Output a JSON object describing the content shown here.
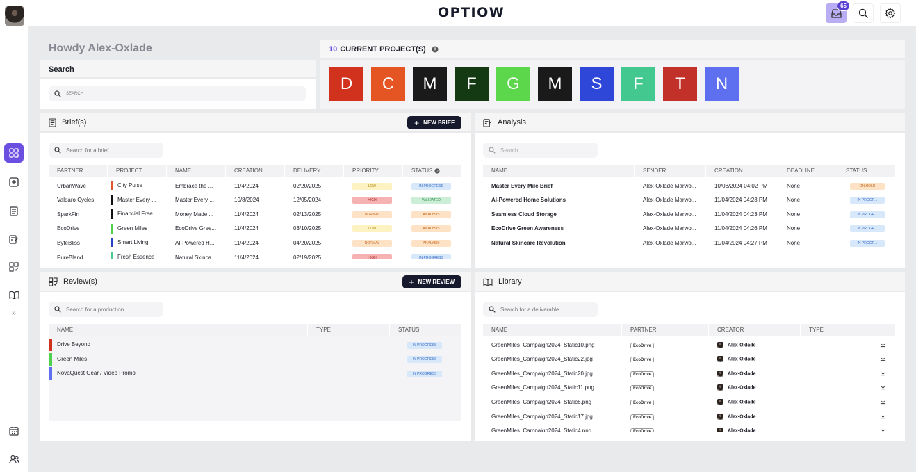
{
  "app": {
    "logo": "OPTIOW",
    "inbox_count": "65"
  },
  "welcome": {
    "greeting": "Howdy Alex-Oxlade",
    "search_title": "Search",
    "search_placeholder": "SEARCH"
  },
  "projects": {
    "count": "10",
    "label": "CURRENT PROJECT(S)",
    "tiles": [
      {
        "letter": "D",
        "color": "#d1321e"
      },
      {
        "letter": "C",
        "color": "#e55423"
      },
      {
        "letter": "M",
        "color": "#1a1a1a"
      },
      {
        "letter": "F",
        "color": "#133a12"
      },
      {
        "letter": "G",
        "color": "#5cd64a"
      },
      {
        "letter": "M",
        "color": "#1a1a1a"
      },
      {
        "letter": "S",
        "color": "#2e47d9"
      },
      {
        "letter": "F",
        "color": "#43c98f"
      },
      {
        "letter": "T",
        "color": "#c2302a"
      },
      {
        "letter": "N",
        "color": "#5e6ff0"
      }
    ]
  },
  "briefs": {
    "title": "Brief(s)",
    "new_button": "NEW BRIEF",
    "search_placeholder": "Search for a brief",
    "columns": [
      "PARTNER",
      "PROJECT",
      "NAME",
      "CREATION",
      "DELIVERY",
      "PRIORITY",
      "STATUS"
    ],
    "rows": [
      {
        "partner": "UrbanWave",
        "project": "City Pulse",
        "color": "#e0532c",
        "name": "Embrace the ...",
        "creation": "11/4/2024",
        "delivery": "02/20/2025",
        "priority": "LOW",
        "status": "IN PROGRESS"
      },
      {
        "partner": "Valdaro Cycles",
        "project": "Master Every ...",
        "color": "#111111",
        "name": "Master Every ...",
        "creation": "10/8/2024",
        "delivery": "12/05/2024",
        "priority": "HIGH",
        "status": "VALIDATED"
      },
      {
        "partner": "SparkFin",
        "project": "Financial Free...",
        "color": "#111111",
        "name": "Money Made ...",
        "creation": "11/4/2024",
        "delivery": "02/13/2025",
        "priority": "NORMAL",
        "status": "ANALYSIS"
      },
      {
        "partner": "EcoDrive",
        "project": "Green Miles",
        "color": "#4fd150",
        "name": "EcoDrive Gree...",
        "creation": "11/4/2024",
        "delivery": "03/10/2025",
        "priority": "LOW",
        "status": "ANALYSIS"
      },
      {
        "partner": "ByteBliss",
        "project": "Smart Living",
        "color": "#2a3fc8",
        "name": "AI-Powered H...",
        "creation": "11/4/2024",
        "delivery": "04/20/2025",
        "priority": "NORMAL",
        "status": "ANALYSIS"
      },
      {
        "partner": "PureBlend",
        "project": "Fresh Essence",
        "color": "#4bc98f",
        "name": "Natural Skinca...",
        "creation": "11/4/2024",
        "delivery": "02/19/2025",
        "priority": "HIGH",
        "status": "IN PROGRESS"
      }
    ]
  },
  "analysis": {
    "title": "Analysis",
    "search_placeholder": "Search",
    "columns": [
      "NAME",
      "SENDER",
      "CREATION",
      "DEADLINE",
      "STATUS"
    ],
    "rows": [
      {
        "name": "Master Every Mile Brief",
        "sender": "Alex-Oxlade Marwo...",
        "creation": "10/08/2024 04:02 PM",
        "deadline": "None",
        "status": "ON HOLD"
      },
      {
        "name": "AI-Powered Home Solutions",
        "sender": "Alex-Oxlade Marwo...",
        "creation": "11/04/2024 04:23 PM",
        "deadline": "None",
        "status": "IN PROGR..."
      },
      {
        "name": "Seamless Cloud Storage",
        "sender": "Alex-Oxlade Marwo...",
        "creation": "11/04/2024 04:23 PM",
        "deadline": "None",
        "status": "IN PROGR..."
      },
      {
        "name": "EcoDrive Green Awareness",
        "sender": "Alex-Oxlade Marwo...",
        "creation": "11/04/2024 04:26 PM",
        "deadline": "None",
        "status": "IN PROGR..."
      },
      {
        "name": "Natural Skincare Revolution",
        "sender": "Alex-Oxlade Marwo...",
        "creation": "11/04/2024 04:27 PM",
        "deadline": "None",
        "status": "IN PROGR..."
      }
    ]
  },
  "reviews": {
    "title": "Review(s)",
    "new_button": "NEW REVIEW",
    "search_placeholder": "Search for a production",
    "columns": [
      "NAME",
      "TYPE",
      "STATUS"
    ],
    "rows": [
      {
        "name": "Drive Beyond",
        "color": "#d1321e",
        "status": "IN PROGRESS"
      },
      {
        "name": "Green Miles",
        "color": "#4fd150",
        "status": "IN PROGRESS"
      },
      {
        "name": "NovaQuest Gear / Video Promo",
        "color": "#5e6ff0",
        "status": "IN PROGRESS"
      }
    ]
  },
  "library": {
    "title": "Library",
    "search_placeholder": "Search for a deliverable",
    "columns": [
      "NAME",
      "PARTNER",
      "CREATOR",
      "TYPE"
    ],
    "rows": [
      {
        "name": "GreenMiles_Campaign2024_Static10.png",
        "partner": "EcoDrive",
        "creator": "Alex-Oxlade"
      },
      {
        "name": "GreenMiles_Campaign2024_Static22.jpg",
        "partner": "EcoDrive",
        "creator": "Alex-Oxlade"
      },
      {
        "name": "GreenMiles_Campaign2024_Static20.jpg",
        "partner": "EcoDrive",
        "creator": "Alex-Oxlade"
      },
      {
        "name": "GreenMiles_Campaign2024_Static11.png",
        "partner": "EcoDrive",
        "creator": "Alex-Oxlade"
      },
      {
        "name": "GreenMiles_Campaign2024_Static6.png",
        "partner": "EcoDrive",
        "creator": "Alex-Oxlade"
      },
      {
        "name": "GreenMiles_Campaign2024_Static17.jpg",
        "partner": "EcoDrive",
        "creator": "Alex-Oxlade"
      },
      {
        "name": "GreenMiles_Campaign2024_Static4.png",
        "partner": "EcoDrive",
        "creator": "Alex-Oxlade"
      }
    ]
  },
  "styles": {
    "priority": {
      "LOW": {
        "bg": "#fdf2c2",
        "fg": "#b08a10"
      },
      "HIGH": {
        "bg": "#f6b2b2",
        "fg": "#b0302c"
      },
      "NORMAL": {
        "bg": "#fde2c6",
        "fg": "#c46a22"
      }
    },
    "status": {
      "IN PROGRESS": {
        "bg": "#d8e8fb",
        "fg": "#3c6fc4"
      },
      "VALIDATED": {
        "bg": "#cdeed6",
        "fg": "#2e8c4a"
      },
      "ANALYSIS": {
        "bg": "#fde2c6",
        "fg": "#c46a22"
      },
      "ON HOLD": {
        "bg": "#fde2c6",
        "fg": "#c46a22"
      },
      "IN PROGR...": {
        "bg": "#d8e8fb",
        "fg": "#3c6fc4"
      }
    }
  }
}
